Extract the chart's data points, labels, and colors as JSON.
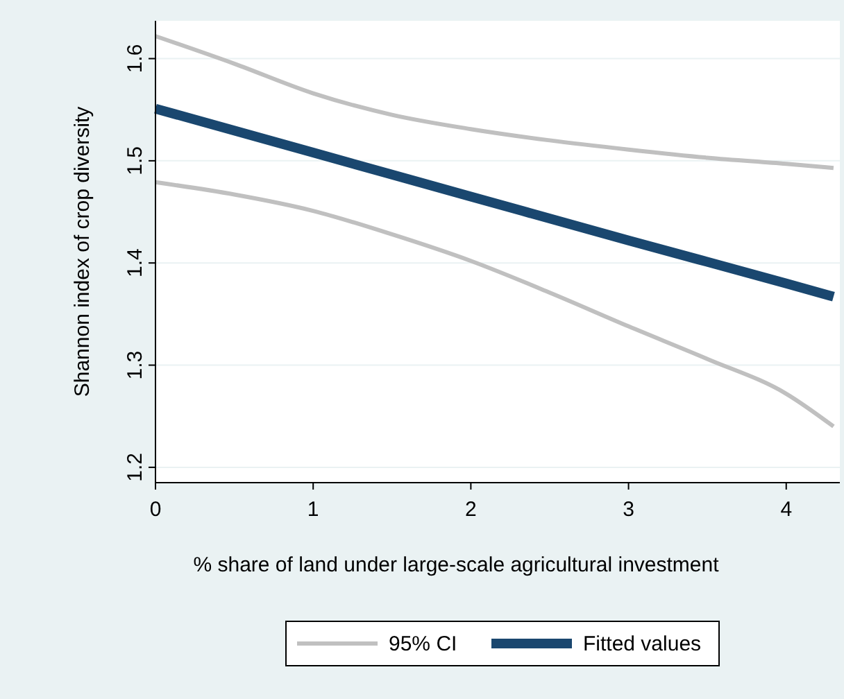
{
  "chart_data": {
    "type": "line",
    "xlabel": "% share of land under large-scale agricultural investment",
    "ylabel": "Shannon index of crop diversity",
    "xlim": [
      0,
      4.34
    ],
    "ylim": [
      1.185,
      1.637
    ],
    "xticks": [
      0,
      1,
      2,
      3,
      4
    ],
    "yticks": [
      {
        "value": 1.2,
        "label": "1.2"
      },
      {
        "value": 1.3,
        "label": "1.3"
      },
      {
        "value": 1.4,
        "label": "1.4"
      },
      {
        "value": 1.5,
        "label": "1.5"
      },
      {
        "value": 1.6,
        "label": "1.6"
      }
    ],
    "grid": "y",
    "legend": "bottom",
    "line_style": "solid",
    "series": [
      {
        "name": "95% CI",
        "color": "#c0c0c0",
        "x": [
          0,
          0.5,
          1,
          1.5,
          2,
          2.5,
          3,
          3.5,
          4,
          4.3
        ],
        "values": [
          1.622,
          1.595,
          1.566,
          1.545,
          1.531,
          1.52,
          1.511,
          1.503,
          1.497,
          1.493
        ]
      },
      {
        "color": "#c0c0c0",
        "x": [
          0,
          0.5,
          1,
          1.5,
          2,
          2.5,
          3,
          3.5,
          4,
          4.3
        ],
        "values": [
          1.479,
          1.467,
          1.451,
          1.428,
          1.402,
          1.371,
          1.338,
          1.306,
          1.272,
          1.24
        ]
      },
      {
        "name": "Fitted values",
        "color": "#1a476f",
        "x": [
          0,
          1,
          2,
          3,
          4,
          4.3
        ],
        "values": [
          1.551,
          1.508,
          1.465,
          1.422,
          1.38,
          1.367
        ]
      }
    ]
  }
}
